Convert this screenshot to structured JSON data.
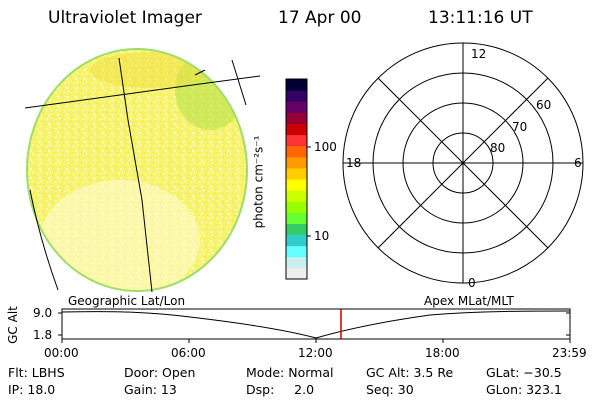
{
  "header": {
    "instrument": "Ultraviolet Imager",
    "date": "17 Apr 00",
    "time": "13:11:16 UT"
  },
  "colorbar": {
    "unit_label": "photon cm⁻²s⁻¹",
    "ticks": [
      "100",
      "10"
    ],
    "colors": [
      "#000033",
      "#330066",
      "#660066",
      "#990033",
      "#cc0000",
      "#ff3333",
      "#ff6600",
      "#ff9900",
      "#ffcc00",
      "#ffff00",
      "#ccff00",
      "#99ff00",
      "#66ff33",
      "#33cc66",
      "#33cccc",
      "#66ffff",
      "#cceeee",
      "#eeeeee"
    ]
  },
  "polar_plot": {
    "mlt_labels": [
      "12",
      "18",
      "6",
      "0"
    ],
    "lat_labels": [
      "60",
      "70",
      "80"
    ]
  },
  "altitude_strip": {
    "left_title": "Geographic Lat/Lon",
    "right_title": "Apex MLat/MLT",
    "y_axis_label": "GC Alt",
    "y_ticks": [
      "9.0",
      "1.8"
    ],
    "x_ticks": [
      "00:00",
      "06:00",
      "12:00",
      "18:00",
      "23:59"
    ],
    "marker_color": "#cc0000"
  },
  "status": {
    "flt": "Flt: LBHS",
    "ip": "IP: 18.0",
    "door": "Door: Open",
    "gain": "Gain: 13",
    "mode": "Mode: Normal",
    "dsp": "Dsp:     2.0",
    "gcalt": "GC Alt: 3.5 Re",
    "seq": "Seq: 30",
    "glat": "GLat: −30.5",
    "glon": "GLon: 323.1"
  }
}
